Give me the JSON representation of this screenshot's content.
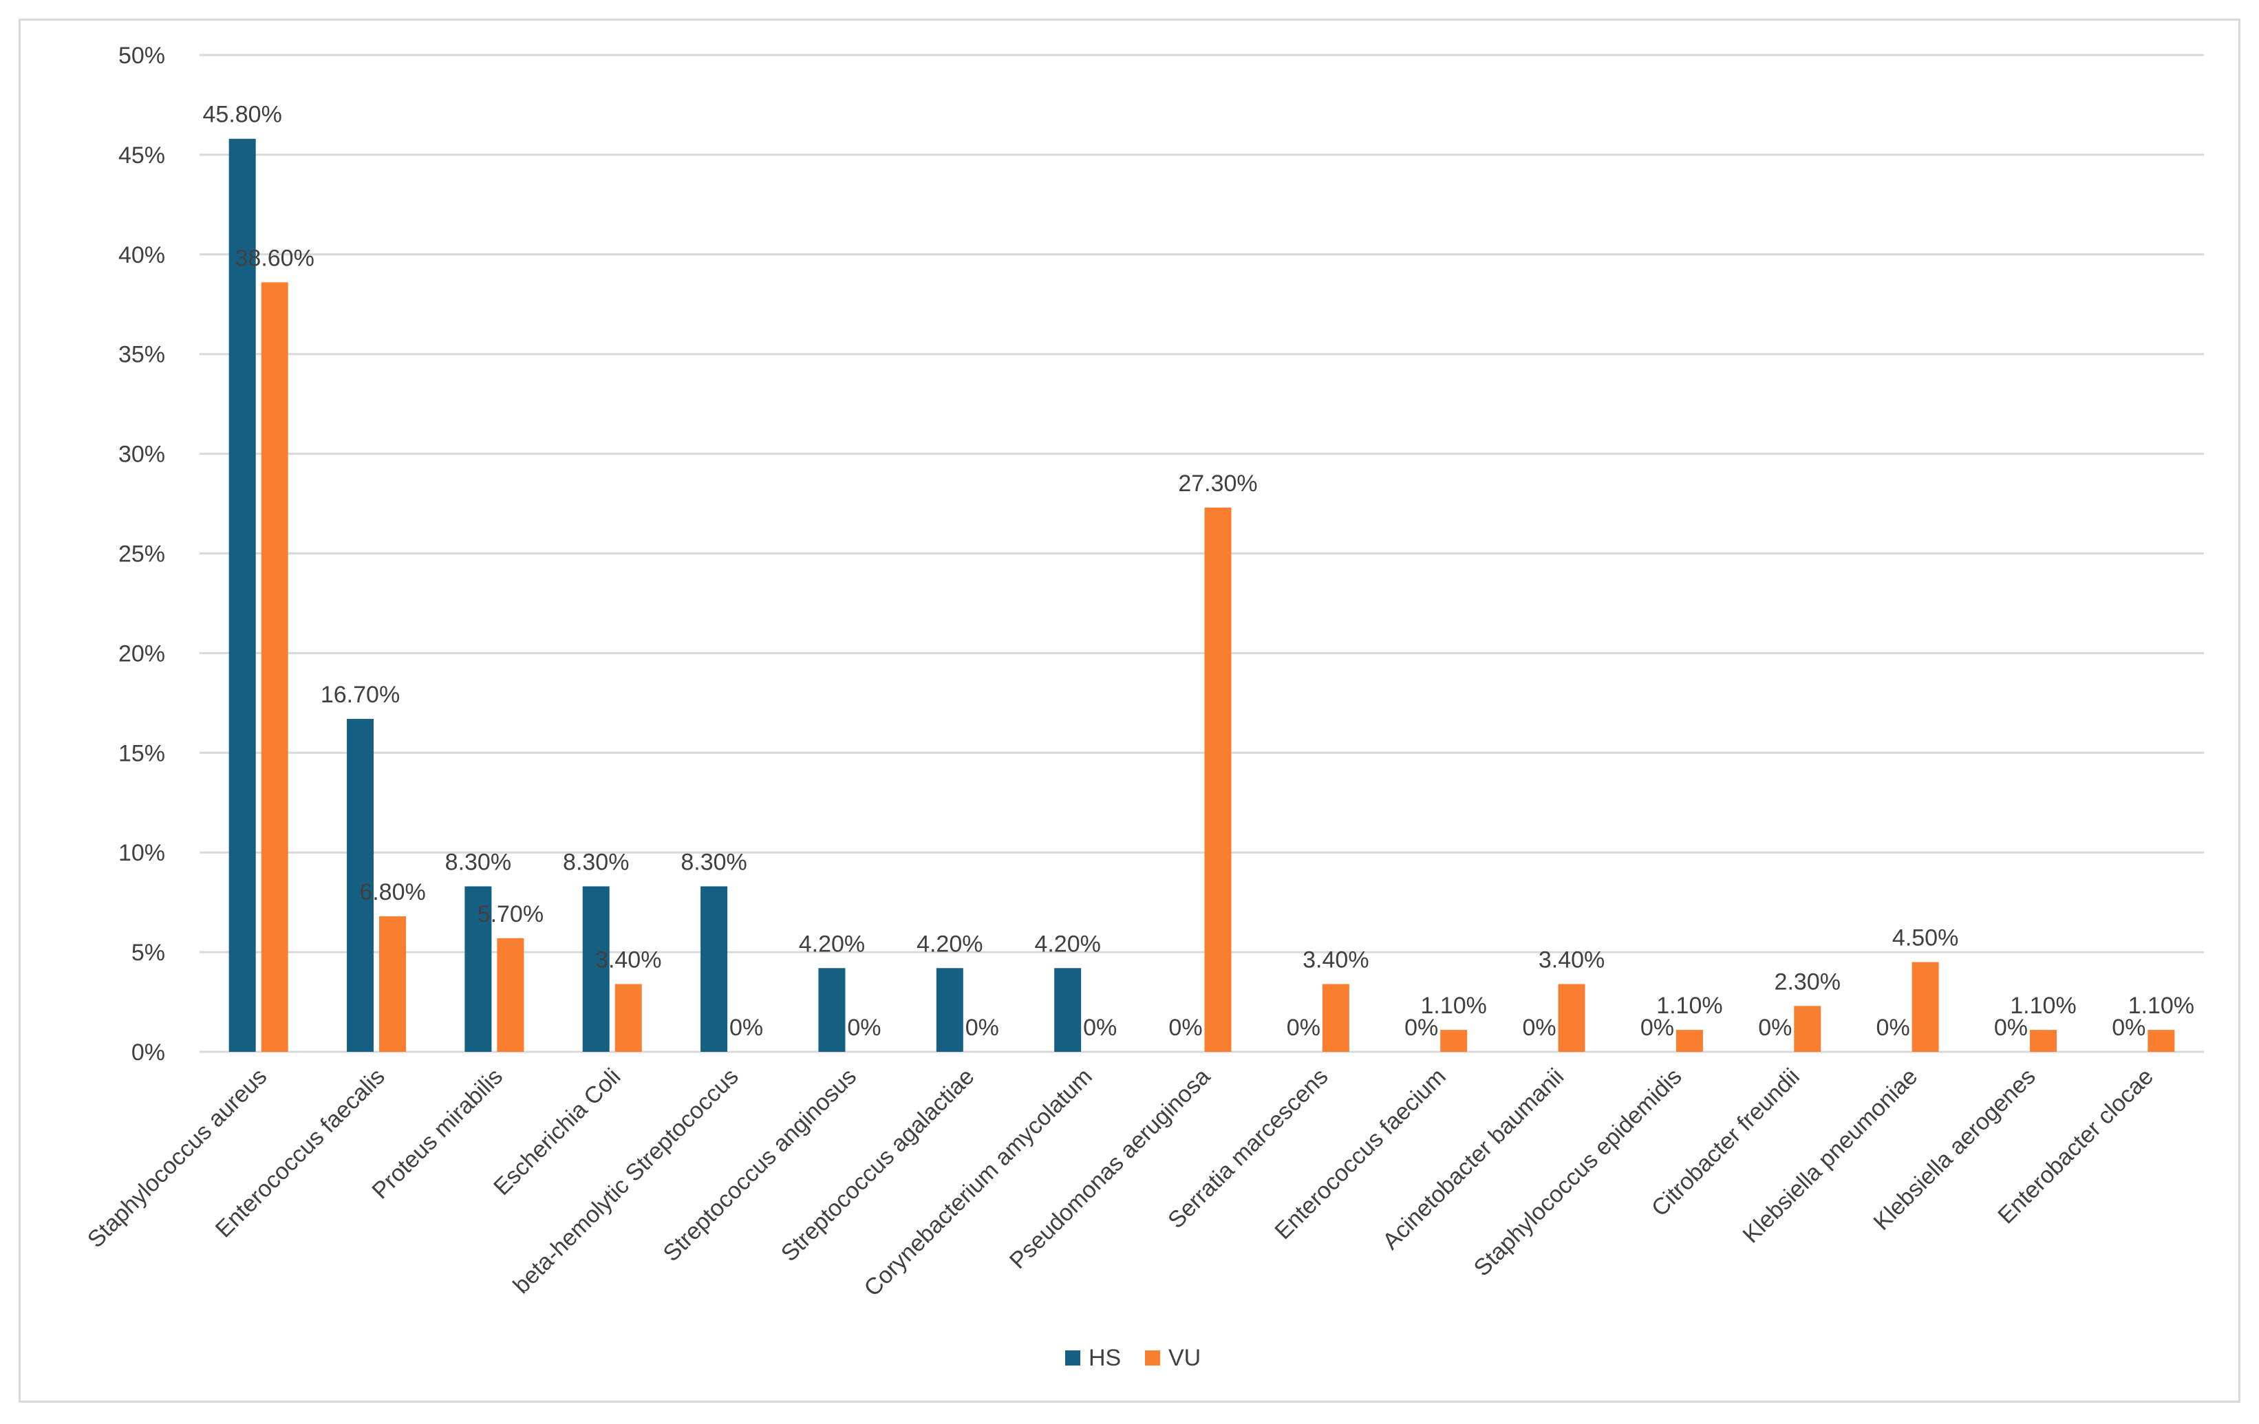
{
  "chart_data": {
    "type": "bar",
    "title": "",
    "xlabel": "",
    "ylabel": "",
    "ylim": [
      0,
      50
    ],
    "y_ticks": [
      {
        "value": 0,
        "label": "0%"
      },
      {
        "value": 5,
        "label": "5%"
      },
      {
        "value": 10,
        "label": "10%"
      },
      {
        "value": 15,
        "label": "15%"
      },
      {
        "value": 20,
        "label": "20%"
      },
      {
        "value": 25,
        "label": "25%"
      },
      {
        "value": 30,
        "label": "30%"
      },
      {
        "value": 35,
        "label": "35%"
      },
      {
        "value": 40,
        "label": "40%"
      },
      {
        "value": 45,
        "label": "45%"
      },
      {
        "value": 50,
        "label": "50%"
      }
    ],
    "grid": true,
    "legend_position": "bottom",
    "categories": [
      "Staphylococcus aureus",
      "Enterococcus faecalis",
      "Proteus mirabilis",
      "Escherichia Coli",
      "beta-hemolytic Streptococcus",
      "Streptococcus anginosus",
      "Streptococcus agalactiae",
      "Corynebacterium amycolatum",
      "Pseudomonas aeruginosa",
      "Serratia marcescens",
      "Enterococcus faecium",
      "Acinetobacter baumanii",
      "Staphylococcus epidemidis",
      "Citrobacter freundii",
      "Klebsiella pneumoniae",
      "Klebsiella aerogenes",
      "Enterobacter clocae"
    ],
    "series": [
      {
        "name": "HS",
        "color": "#156082",
        "values": [
          45.8,
          16.7,
          8.3,
          8.3,
          8.3,
          4.2,
          4.2,
          4.2,
          0,
          0,
          0,
          0,
          0,
          0,
          0,
          0,
          0
        ],
        "labels": [
          "45.80%",
          "16.70%",
          "8.30%",
          "8.30%",
          "8.30%",
          "4.20%",
          "4.20%",
          "4.20%",
          "0%",
          "0%",
          "0%",
          "0%",
          "0%",
          "0%",
          "0%",
          "0%",
          "0%"
        ]
      },
      {
        "name": "VU",
        "color": "#F97E2F",
        "values": [
          38.6,
          6.8,
          5.7,
          3.4,
          0,
          0,
          0,
          0,
          27.3,
          3.4,
          1.1,
          3.4,
          1.1,
          2.3,
          4.5,
          1.1,
          1.1
        ],
        "labels": [
          "38.60%",
          "6.80%",
          "5.70%",
          "3.40%",
          "0%",
          "0%",
          "0%",
          "0%",
          "27.30%",
          "3.40%",
          "1.10%",
          "3.40%",
          "1.10%",
          "2.30%",
          "4.50%",
          "1.10%",
          "1.10%"
        ]
      }
    ]
  }
}
